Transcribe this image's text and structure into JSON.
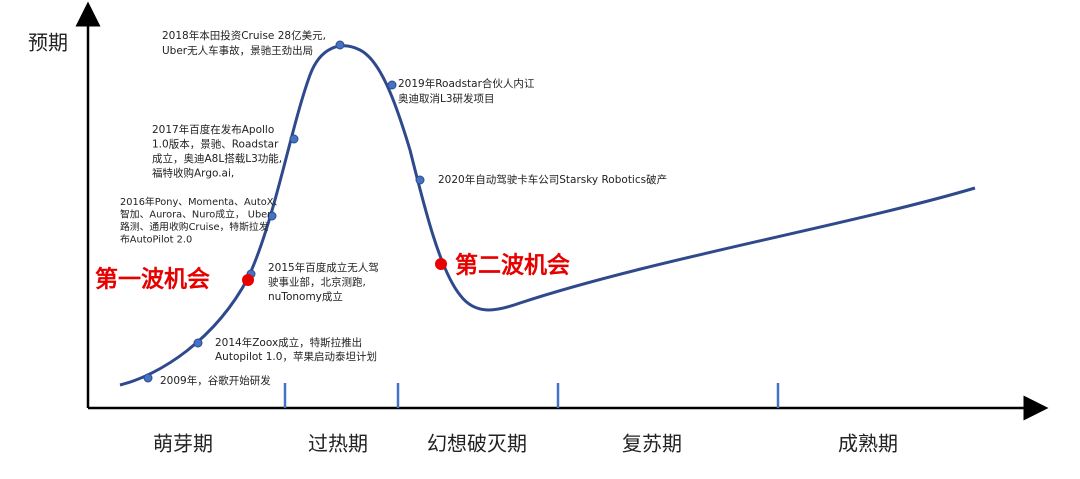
{
  "y_axis_label": "预期",
  "phases": [
    "萌芽期",
    "过热期",
    "幻想破灭期",
    "复苏期",
    "成熟期"
  ],
  "events": [
    {
      "lines": [
        "2009年，谷歌开始研发"
      ]
    },
    {
      "lines": [
        "2014年Zoox成立，特斯拉推出",
        "Autopilot 1.0，苹果启动泰坦计划"
      ]
    },
    {
      "lines": [
        "2015年百度成立无人驾",
        "驶事业部，北京测跑,",
        "nuTonomy成立"
      ]
    },
    {
      "lines": [
        "2016年Pony、Momenta、AutoX、",
        "智加、Aurora、Nuro成立， Uber",
        "路测、通用收购Cruise，特斯拉发",
        "布AutoPilot 2.0"
      ]
    },
    {
      "lines": [
        "2017年百度在发布Apollo",
        "1.0版本，景驰、Roadstar",
        "成立，奥迪A8L搭载L3功能,",
        "福特收购Argo.ai,"
      ]
    },
    {
      "lines": [
        "2018年本田投资Cruise 28亿美元,",
        "Uber无人车事故，景驰王劲出局"
      ]
    },
    {
      "lines": [
        "2019年Roadstar合伙人内讧",
        "奥迪取消L3研发项目"
      ]
    },
    {
      "lines": [
        "2020年自动驾驶卡车公司Starsky Robotics破产"
      ]
    }
  ],
  "highlights": [
    "第一波机会",
    "第二波机会"
  ]
}
